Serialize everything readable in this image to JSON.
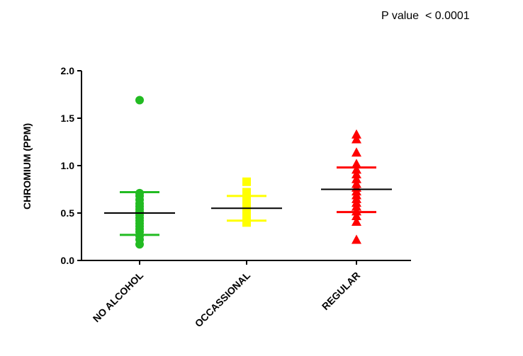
{
  "annotation": "P value  < 0.0001",
  "chart_data": {
    "type": "scatter",
    "title": "",
    "xlabel": "",
    "ylabel": "CHROMIUM (PPM)",
    "ylim": [
      0.0,
      2.0
    ],
    "yticks": [
      {
        "v": 0.0,
        "label": "0.0"
      },
      {
        "v": 0.5,
        "label": "0.5"
      },
      {
        "v": 1.0,
        "label": "1.0"
      },
      {
        "v": 1.5,
        "label": "1.5"
      },
      {
        "v": 2.0,
        "label": "2.0"
      }
    ],
    "categories": [
      "NO ALCOHOL",
      "OCCASSIONAL",
      "REGULAR"
    ],
    "groups": [
      {
        "name": "NO ALCOHOL",
        "marker": "circle",
        "color": "#22bb22",
        "values": [
          1.69,
          0.71,
          0.68,
          0.64,
          0.6,
          0.57,
          0.54,
          0.51,
          0.48,
          0.45,
          0.42,
          0.39,
          0.36,
          0.33,
          0.3,
          0.26,
          0.22,
          0.17
        ],
        "mean": 0.5,
        "sd_upper": 0.72,
        "sd_lower": 0.27
      },
      {
        "name": "OCCASSIONAL",
        "marker": "square",
        "color": "#ffff00",
        "values": [
          0.83,
          0.72,
          0.66,
          0.61,
          0.57,
          0.53,
          0.5,
          0.46,
          0.43,
          0.4
        ],
        "mean": 0.55,
        "sd_upper": 0.68,
        "sd_lower": 0.42
      },
      {
        "name": "REGULAR",
        "marker": "triangle",
        "color": "#ff0000",
        "values": [
          1.33,
          1.28,
          1.14,
          1.02,
          0.96,
          0.91,
          0.86,
          0.81,
          0.77,
          0.73,
          0.69,
          0.65,
          0.61,
          0.57,
          0.52,
          0.47,
          0.41,
          0.22
        ],
        "mean": 0.75,
        "sd_upper": 0.98,
        "sd_lower": 0.51
      }
    ]
  }
}
